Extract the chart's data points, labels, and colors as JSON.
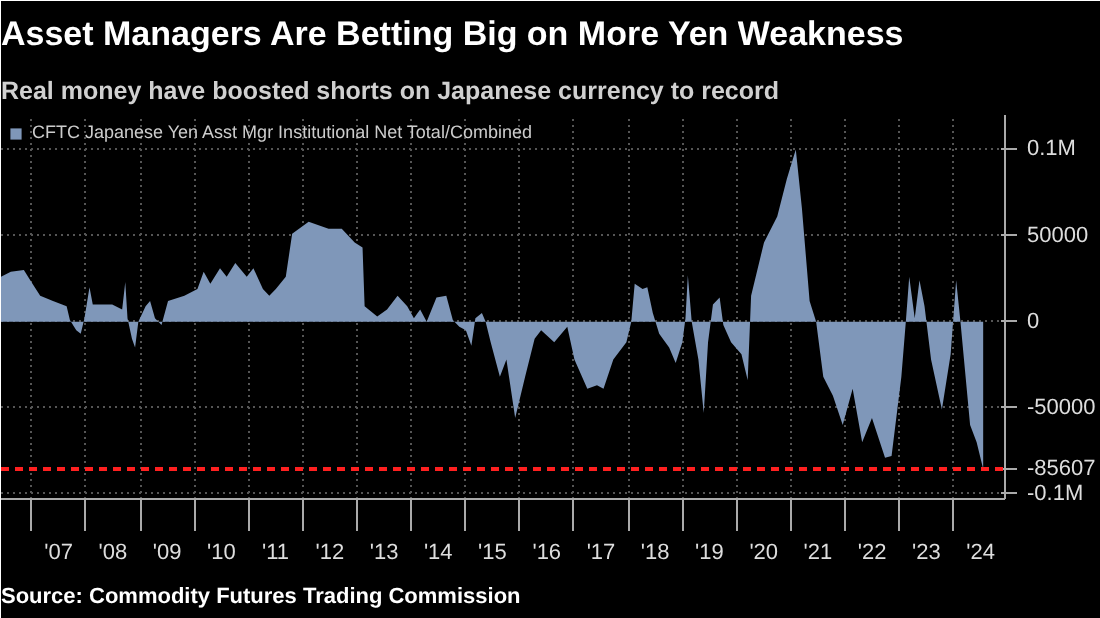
{
  "chart_data": {
    "type": "area",
    "title": "Asset Managers Are Betting Big on More Yen Weakness",
    "subtitle": "Real money have boosted shorts on Japanese currency to record",
    "annotations": [
      "Source: Commodity Futures Trading Commission"
    ],
    "series": [
      {
        "name": "CFTC Japanese Yen Asst Mgr Institutional Net Total/Combined",
        "color": "#7f97b9",
        "x": [
          "2006-06-09",
          "2006-08-14",
          "2006-11-10",
          "2006-12-23",
          "2007-02-28",
          "2007-05-25",
          "2007-08-25",
          "2007-09-16",
          "2007-10-29",
          "2007-11-28",
          "2007-12-23",
          "2008-01-26",
          "2008-02-17",
          "2008-06-27",
          "2008-09-02",
          "2008-09-23",
          "2008-10-08",
          "2008-11-07",
          "2008-11-28",
          "2008-12-20",
          "2009-02-07",
          "2009-03-09",
          "2009-04-11",
          "2009-05-25",
          "2009-07-08",
          "2009-10-26",
          "2010-01-22",
          "2010-03-05",
          "2010-04-19",
          "2010-06-23",
          "2010-08-07",
          "2010-10-04",
          "2010-12-20",
          "2011-02-03",
          "2011-04-08",
          "2011-05-21",
          "2011-07-04",
          "2011-09-09",
          "2011-10-22",
          "2012-02-10",
          "2012-06-23",
          "2012-09-20",
          "2012-12-16",
          "2013-02-07",
          "2013-02-21",
          "2013-05-17",
          "2013-07-22",
          "2013-10-01",
          "2013-12-05",
          "2014-01-19",
          "2014-03-02",
          "2014-04-15",
          "2014-06-20",
          "2014-08-25",
          "2014-10-08",
          "2014-11-21",
          "2015-01-04",
          "2015-02-10",
          "2015-03-09",
          "2015-04-22",
          "2015-05-17",
          "2015-06-20",
          "2015-08-21",
          "2015-10-04",
          "2015-12-02",
          "2016-02-07",
          "2016-04-11",
          "2016-05-25",
          "2016-08-21",
          "2016-11-17",
          "2017-01-04",
          "2017-04-01",
          "2017-06-05",
          "2017-07-19",
          "2017-09-23",
          "2017-12-20",
          "2018-01-22",
          "2018-02-14",
          "2018-04-08",
          "2018-05-10",
          "2018-06-16",
          "2018-07-29",
          "2018-10-04",
          "2018-11-17",
          "2019-01-01",
          "2019-01-22",
          "2019-02-07",
          "2019-03-05",
          "2019-04-19",
          "2019-05-25",
          "2019-06-23",
          "2019-07-26",
          "2019-09-09",
          "2019-10-04",
          "2019-11-25",
          "2020-02-03",
          "2020-03-16",
          "2020-04-08",
          "2020-07-04",
          "2020-10-01",
          "2020-12-05",
          "2021-02-03",
          "2021-03-16",
          "2021-05-07",
          "2021-06-20",
          "2021-08-07",
          "2021-10-11",
          "2021-12-16",
          "2022-02-21",
          "2022-04-26",
          "2022-07-01",
          "2022-09-27",
          "2022-11-10",
          "2023-01-15",
          "2023-02-14",
          "2023-03-09",
          "2023-04-15",
          "2023-05-17",
          "2023-06-20",
          "2023-08-03",
          "2023-10-15",
          "2023-12-13",
          "2024-01-19",
          "2024-02-17",
          "2024-04-22",
          "2024-06-05",
          "2024-07-19"
        ],
        "values": [
          26000,
          29000,
          30000,
          24000,
          15000,
          12000,
          9000,
          1000,
          -5000,
          -7000,
          2000,
          20000,
          10000,
          10000,
          7000,
          23000,
          2000,
          -10000,
          -15000,
          0,
          9000,
          12000,
          2000,
          -2000,
          12000,
          15000,
          19000,
          29000,
          22000,
          31000,
          26000,
          34000,
          26000,
          31000,
          19000,
          15000,
          19000,
          26000,
          51000,
          58000,
          54000,
          54000,
          46000,
          43000,
          9000,
          3000,
          7000,
          15000,
          9000,
          2000,
          7000,
          0,
          14000,
          15000,
          1000,
          -3000,
          -5000,
          -14000,
          2000,
          5000,
          0,
          -12000,
          -32000,
          -22000,
          -56000,
          -32000,
          -10000,
          -5000,
          -12000,
          -3000,
          -22000,
          -39000,
          -37000,
          -39000,
          -22000,
          -12000,
          0,
          22000,
          19000,
          20000,
          5000,
          -7000,
          -15000,
          -24000,
          -12000,
          2000,
          27000,
          0,
          -22000,
          -53000,
          -12000,
          10000,
          14000,
          -2000,
          -12000,
          -19000,
          -34000,
          15000,
          46000,
          61000,
          83000,
          100000,
          66000,
          12000,
          0,
          -32000,
          -43000,
          -60000,
          -39000,
          -70000,
          -56000,
          -79000,
          -78000,
          -32000,
          0,
          26000,
          2000,
          24000,
          9000,
          -22000,
          -51000,
          -19000,
          24000,
          0,
          -60000,
          -70000,
          -85607
        ]
      }
    ],
    "xlim": [
      "2006-06-09",
      "2024-12-13"
    ],
    "xticks": [
      {
        "value": "2007-01-01",
        "label": null
      },
      {
        "value": "2007-07-02",
        "label": "'07"
      },
      {
        "value": "2008-01-01",
        "label": null
      },
      {
        "value": "2008-07-02",
        "label": "'08"
      },
      {
        "value": "2009-01-01",
        "label": null
      },
      {
        "value": "2009-07-02",
        "label": "'09"
      },
      {
        "value": "2010-01-01",
        "label": null
      },
      {
        "value": "2010-07-02",
        "label": "'10"
      },
      {
        "value": "2011-01-01",
        "label": null
      },
      {
        "value": "2011-07-02",
        "label": "'11"
      },
      {
        "value": "2012-01-01",
        "label": null
      },
      {
        "value": "2012-07-02",
        "label": "'12"
      },
      {
        "value": "2013-01-01",
        "label": null
      },
      {
        "value": "2013-07-02",
        "label": "'13"
      },
      {
        "value": "2014-01-01",
        "label": null
      },
      {
        "value": "2014-07-02",
        "label": "'14"
      },
      {
        "value": "2015-01-01",
        "label": null
      },
      {
        "value": "2015-07-02",
        "label": "'15"
      },
      {
        "value": "2016-01-01",
        "label": null
      },
      {
        "value": "2016-07-02",
        "label": "'16"
      },
      {
        "value": "2017-01-01",
        "label": null
      },
      {
        "value": "2017-07-02",
        "label": "'17"
      },
      {
        "value": "2018-01-01",
        "label": null
      },
      {
        "value": "2018-07-02",
        "label": "'18"
      },
      {
        "value": "2019-01-01",
        "label": null
      },
      {
        "value": "2019-07-02",
        "label": "'19"
      },
      {
        "value": "2020-01-01",
        "label": null
      },
      {
        "value": "2020-07-02",
        "label": "'20"
      },
      {
        "value": "2021-01-01",
        "label": null
      },
      {
        "value": "2021-07-02",
        "label": "'21"
      },
      {
        "value": "2022-01-01",
        "label": null
      },
      {
        "value": "2022-07-02",
        "label": "'22"
      },
      {
        "value": "2023-01-01",
        "label": null
      },
      {
        "value": "2023-07-02",
        "label": "'23"
      },
      {
        "value": "2024-01-01",
        "label": null
      },
      {
        "value": "2024-07-02",
        "label": "'24"
      }
    ],
    "ylim": [
      -103000,
      120000
    ],
    "yticks": [
      {
        "value": 100000,
        "label": "0.1M"
      },
      50000,
      0,
      -50000,
      {
        "value": -100000,
        "label": "-0.1M"
      }
    ],
    "ref_lines": [
      {
        "axis": "y",
        "value": -85607,
        "label": "-85607",
        "color": "#ff2020",
        "line_style": "dashed"
      }
    ],
    "grid": true,
    "legend": "top left"
  }
}
